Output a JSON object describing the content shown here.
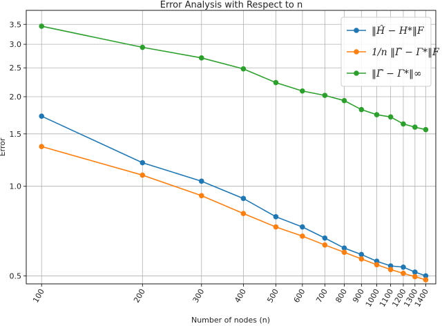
{
  "chart_data": {
    "type": "line",
    "title": "Error Analysis with Respect to n",
    "xlabel": "Number of nodes (n)",
    "ylabel": "Error",
    "x_scale": "log",
    "y_scale": "log",
    "x": [
      100,
      200,
      300,
      400,
      500,
      600,
      700,
      800,
      900,
      1000,
      1100,
      1200,
      1300,
      1400
    ],
    "x_tick_labels": [
      "100",
      "200",
      "300",
      "400",
      "500",
      "600",
      "700",
      "800",
      "900",
      "1000",
      "1100",
      "1200",
      "1300",
      "1400"
    ],
    "y_ticks": [
      0.5,
      1.0,
      1.5,
      2.0,
      2.5,
      3.0,
      3.5
    ],
    "y_tick_labels": [
      "0.5",
      "1.0",
      "1.5",
      "2.0",
      "2.5",
      "3.0",
      "3.5"
    ],
    "xlim": [
      90,
      1500
    ],
    "ylim": [
      0.47,
      3.9
    ],
    "grid": true,
    "legend_position": "top-right",
    "series": [
      {
        "name": "‖Ĥ − H*‖_F",
        "legend_label": "‖Ĥ − H*‖F",
        "color": "#1f77b4",
        "values": [
          1.72,
          1.2,
          1.04,
          0.91,
          0.79,
          0.73,
          0.67,
          0.62,
          0.59,
          0.56,
          0.54,
          0.535,
          0.515,
          0.5
        ]
      },
      {
        "name": "(1/n)‖Γ̂ − Γ*‖_F",
        "legend_label": "1/n ‖Γ̂ − Γ*‖F",
        "color": "#ff7f0e",
        "values": [
          1.36,
          1.09,
          0.93,
          0.81,
          0.73,
          0.68,
          0.635,
          0.6,
          0.57,
          0.545,
          0.525,
          0.51,
          0.497,
          0.485
        ]
      },
      {
        "name": "‖Γ̂ − Γ*‖_∞",
        "legend_label": "‖Γ̂ − Γ*‖∞",
        "color": "#2ca02c",
        "values": [
          3.45,
          2.93,
          2.7,
          2.48,
          2.23,
          2.09,
          2.02,
          1.94,
          1.81,
          1.74,
          1.71,
          1.62,
          1.58,
          1.55
        ]
      }
    ]
  }
}
